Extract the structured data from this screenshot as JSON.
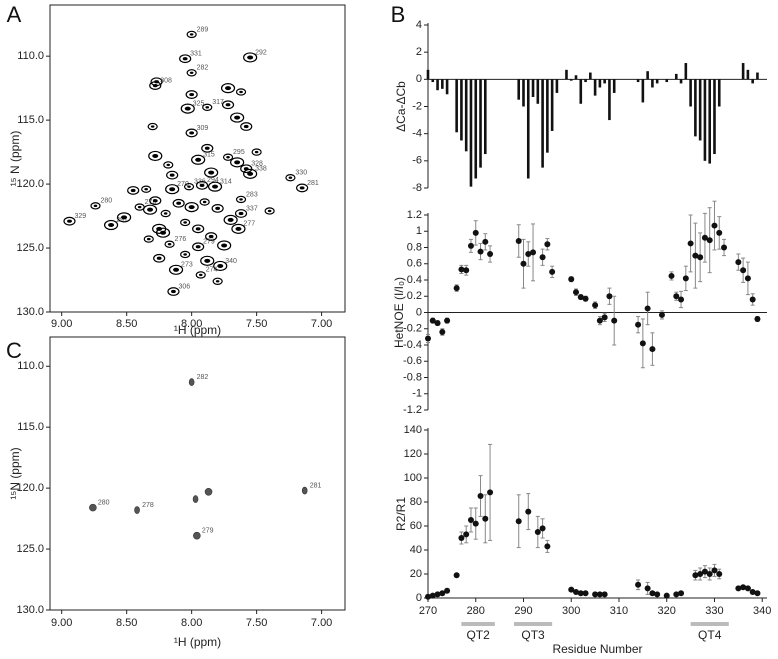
{
  "chart_data": [
    {
      "type": "spectrum",
      "panel": "A",
      "xlabel": "¹H (ppm)",
      "ylabel": "¹⁵ N (ppm)",
      "xlim": [
        9.09,
        6.82
      ],
      "ylim": [
        130,
        106
      ],
      "xticks": [
        {
          "value": 9,
          "label": "9.00"
        },
        {
          "value": 8.5,
          "label": "8.50"
        },
        {
          "value": 8,
          "label": "8.00"
        },
        {
          "value": 7.5,
          "label": "7.50"
        },
        {
          "value": 7,
          "label": "7.00"
        }
      ],
      "yticks": [
        {
          "value": 110,
          "label": "110.0"
        },
        {
          "value": 115,
          "label": "115.0"
        },
        {
          "value": 120,
          "label": "120.0"
        },
        {
          "value": 125,
          "label": "125.0"
        },
        {
          "value": 130,
          "label": "130.0"
        }
      ],
      "color": "#000000",
      "x": [
        8.0,
        8.05,
        7.55,
        8.0,
        8.28,
        8.03,
        7.88,
        8.0,
        7.95,
        7.72,
        7.58,
        7.55,
        7.24,
        7.15,
        8.15,
        8.02,
        7.92,
        7.82,
        8.74,
        8.94,
        8.62,
        7.62,
        7.62,
        7.64,
        8.17,
        7.95,
        8.12,
        7.93,
        8.14,
        7.78,
        8.4,
        8.27,
        7.72,
        7.62,
        7.72,
        7.65,
        8.3,
        7.58,
        8.28,
        8.18,
        7.88,
        7.65,
        8.35,
        8.28,
        8.32,
        8.2,
        8.1,
        8.0,
        7.9,
        7.8,
        7.7,
        8.05,
        7.95,
        8.25,
        8.33,
        7.85,
        7.75,
        8.05,
        8.25,
        7.88,
        7.8,
        8.45,
        8.52,
        7.4,
        8.15,
        7.85,
        7.5,
        8.0,
        8.22
      ],
      "y": [
        108.3,
        110.2,
        110.1,
        111.3,
        112.3,
        114.1,
        114.0,
        116.0,
        118.1,
        117.9,
        118.8,
        119.2,
        119.5,
        120.3,
        120.4,
        120.2,
        120.1,
        120.2,
        121.7,
        122.9,
        123.2,
        121.2,
        122.3,
        123.5,
        124.7,
        124.9,
        126.7,
        127.1,
        128.4,
        126.4,
        121.8,
        112.0,
        112.5,
        112.8,
        113.8,
        114.8,
        115.5,
        115.5,
        117.8,
        118.5,
        117.2,
        118.3,
        120.4,
        121.3,
        122.0,
        122.3,
        121.5,
        121.8,
        121.4,
        121.9,
        122.8,
        123.0,
        123.5,
        123.5,
        124.3,
        124.1,
        124.8,
        125.5,
        125.8,
        126.0,
        127.6,
        120.5,
        122.6,
        122.1,
        119.3,
        119.1,
        117.5,
        113.0,
        123.8
      ],
      "labels": [
        "289",
        "331",
        "292",
        "282",
        "308",
        "325",
        "317",
        "309",
        "315",
        "295",
        "328",
        "338",
        "330",
        "281",
        "270",
        "336",
        "294",
        "314",
        "280",
        "329",
        "291",
        "283",
        "337",
        "277",
        "276",
        "279",
        "273",
        "274",
        "306",
        "340",
        "278",
        null,
        null,
        null,
        null,
        null,
        null,
        null,
        null,
        null,
        null,
        null,
        null,
        null,
        null,
        null,
        null,
        null,
        null,
        null,
        null,
        null,
        null,
        null,
        null,
        null,
        null,
        null,
        null,
        null,
        null,
        null,
        null,
        null,
        null,
        null,
        null,
        null,
        null
      ]
    },
    {
      "type": "spectrum",
      "panel": "C",
      "xlabel": "¹H (ppm)",
      "ylabel": "¹⁵N (ppm)",
      "xlim": [
        9.09,
        6.82
      ],
      "ylim": [
        130,
        107.6
      ],
      "xticks": [
        {
          "value": 9,
          "label": "9.00"
        },
        {
          "value": 8.5,
          "label": "8.50"
        },
        {
          "value": 8,
          "label": "8.00"
        },
        {
          "value": 7.5,
          "label": "7.50"
        },
        {
          "value": 7,
          "label": "7.00"
        }
      ],
      "yticks": [
        {
          "value": 110,
          "label": "110.0"
        },
        {
          "value": 115,
          "label": "115.0"
        },
        {
          "value": 120,
          "label": "120.0"
        },
        {
          "value": 125,
          "label": "125.0"
        },
        {
          "value": 130,
          "label": "130.0"
        }
      ],
      "color": "#555555",
      "x": [
        8.0,
        8.76,
        8.42,
        7.96,
        7.13,
        7.87,
        7.97
      ],
      "y": [
        111.3,
        121.6,
        121.8,
        123.9,
        120.2,
        120.3,
        120.9
      ],
      "labels": [
        "282",
        "280",
        "278",
        "279",
        "281",
        null,
        null
      ]
    },
    {
      "type": "bar",
      "panel": "B",
      "ylabel": "ΔCa-ΔCb",
      "xlim": [
        270,
        341
      ],
      "ylim": [
        -8,
        4
      ],
      "yticks": [
        -8,
        -6,
        -4,
        -2,
        0,
        2,
        4
      ],
      "color": "#111111",
      "x": [
        270,
        271,
        272,
        273,
        274,
        276,
        277,
        278,
        279,
        280,
        281,
        282,
        289,
        290,
        291,
        292,
        293,
        294,
        295,
        296,
        297,
        299,
        300,
        301,
        302,
        303,
        304,
        305,
        306,
        307,
        308,
        309,
        314,
        315,
        316,
        317,
        318,
        320,
        322,
        323,
        324,
        325,
        326,
        327,
        328,
        329,
        330,
        331,
        336,
        337,
        338,
        339
      ],
      "values": [
        0.7,
        -0.2,
        -0.8,
        -0.7,
        -1.1,
        -3.9,
        -4.5,
        -5.3,
        -7.9,
        -7.3,
        -6.5,
        -5.5,
        -1.5,
        -2.0,
        -7.3,
        -1.3,
        -1.8,
        -6.5,
        -5.4,
        -3.8,
        -1.0,
        0.7,
        -0.1,
        0.3,
        -1.8,
        -0.2,
        0.5,
        -1.2,
        -0.6,
        -0.3,
        -3.0,
        -1.0,
        -0.2,
        -1.7,
        0.6,
        -0.6,
        -0.3,
        -0.2,
        0.4,
        -0.3,
        1.2,
        -2.0,
        -4.2,
        -4.5,
        -6.0,
        -6.2,
        -5.5,
        -2.0,
        1.2,
        0.7,
        -0.3,
        0.5
      ]
    },
    {
      "type": "errorscatter",
      "ylabel": "HetNOE (I/I₀)",
      "xlim": [
        270,
        341
      ],
      "ylim": [
        -1.2,
        1.2
      ],
      "yticks": [
        -1.2,
        -1,
        -0.8,
        -0.6,
        -0.4,
        -0.2,
        0,
        0.2,
        0.4,
        0.6,
        0.8,
        1,
        1.2
      ],
      "color": "#111111",
      "zero_line": true,
      "x": [
        270,
        271,
        272,
        273,
        274,
        276,
        277,
        278,
        279,
        280,
        281,
        282,
        283,
        289,
        290,
        291,
        292,
        294,
        295,
        296,
        300,
        301,
        302,
        303,
        305,
        306,
        307,
        308,
        309,
        314,
        315,
        316,
        317,
        319,
        321,
        322,
        323,
        324,
        325,
        326,
        327,
        328,
        329,
        330,
        331,
        332,
        335,
        336,
        337,
        338,
        339
      ],
      "values": [
        -0.32,
        -0.1,
        -0.13,
        -0.24,
        -0.1,
        0.3,
        0.53,
        0.52,
        0.82,
        0.98,
        0.75,
        0.87,
        0.72,
        0.88,
        0.6,
        0.72,
        0.74,
        0.68,
        0.84,
        0.5,
        0.41,
        0.25,
        0.19,
        0.17,
        0.09,
        -0.1,
        -0.06,
        0.2,
        -0.1,
        -0.15,
        -0.38,
        0.05,
        -0.45,
        -0.03,
        0.45,
        0.2,
        0.16,
        0.42,
        0.85,
        0.7,
        0.68,
        0.92,
        0.89,
        1.07,
        0.98,
        0.8,
        0.62,
        0.52,
        0.42,
        0.16,
        -0.08
      ],
      "errors": [
        0.05,
        0.03,
        0.03,
        0.04,
        0.03,
        0.04,
        0.05,
        0.06,
        0.08,
        0.15,
        0.1,
        0.1,
        0.1,
        0.2,
        0.3,
        0.15,
        0.35,
        0.1,
        0.07,
        0.07,
        0.03,
        0.04,
        0.03,
        0.03,
        0.04,
        0.05,
        0.05,
        0.1,
        0.3,
        0.1,
        0.3,
        0.2,
        0.2,
        0.05,
        0.05,
        0.05,
        0.1,
        0.15,
        0.35,
        0.4,
        0.3,
        0.3,
        0.4,
        0.3,
        0.2,
        0.1,
        0.1,
        0.15,
        0.2,
        0.07,
        0.03
      ]
    },
    {
      "type": "errorscatter",
      "ylabel": "R2/R1",
      "xlabel": "Residue Number",
      "xlim": [
        270,
        341
      ],
      "ylim": [
        0,
        140
      ],
      "yticks": [
        0,
        20,
        40,
        60,
        80,
        100,
        120,
        140
      ],
      "xticks": [
        270,
        280,
        290,
        300,
        310,
        320,
        330,
        340
      ],
      "color": "#111111",
      "x": [
        270,
        271,
        272,
        273,
        274,
        276,
        277,
        278,
        279,
        280,
        281,
        282,
        283,
        289,
        291,
        293,
        294,
        295,
        300,
        301,
        302,
        303,
        305,
        306,
        307,
        314,
        316,
        317,
        318,
        320,
        322,
        323,
        326,
        327,
        328,
        329,
        330,
        331,
        335,
        336,
        337,
        338,
        339
      ],
      "values": [
        1,
        2,
        3,
        4,
        6,
        19,
        50,
        53,
        65,
        62,
        85,
        66,
        88,
        64,
        72,
        55,
        58,
        43,
        7,
        5,
        4,
        4,
        3,
        3,
        3,
        11,
        8,
        4,
        3,
        2,
        3,
        4,
        19,
        20,
        22,
        20,
        23,
        20,
        8,
        9,
        8,
        5,
        4
      ],
      "errors": [
        0,
        0,
        0,
        0,
        0,
        1,
        5,
        7,
        10,
        13,
        17,
        20,
        40,
        22,
        15,
        13,
        8,
        5,
        1,
        1,
        0,
        0,
        0,
        0,
        0,
        4,
        5,
        1,
        0,
        0,
        0,
        0,
        4,
        5,
        5,
        5,
        5,
        4,
        1,
        1,
        1,
        1,
        1
      ],
      "annotations": [
        {
          "label": "QT2",
          "x": [
            277,
            284
          ]
        },
        {
          "label": "QT3",
          "x": [
            288,
            296
          ]
        },
        {
          "label": "QT4",
          "x": [
            325,
            333
          ]
        }
      ]
    }
  ]
}
